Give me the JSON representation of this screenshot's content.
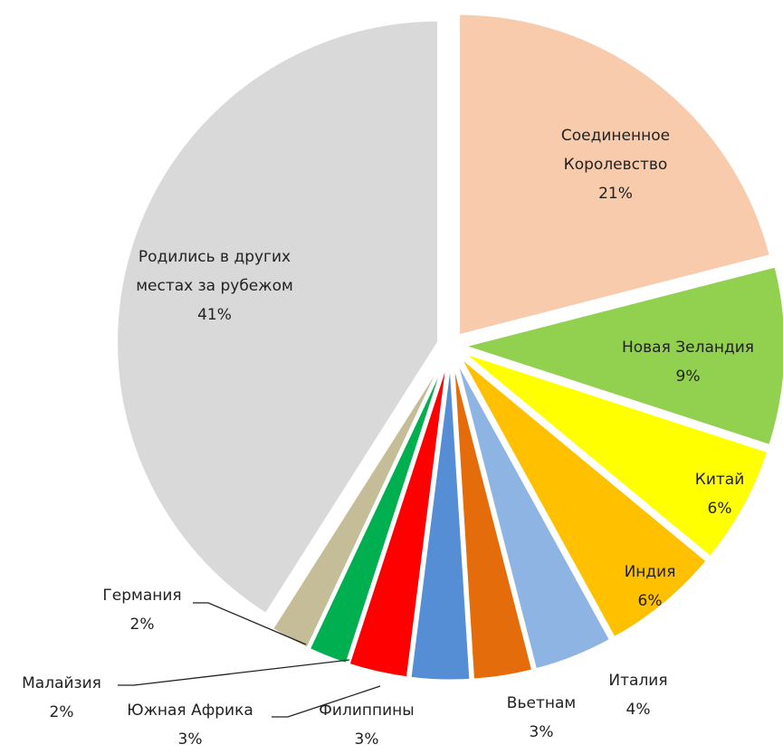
{
  "chart_data": {
    "type": "pie",
    "categories": [
      "Соединенное Королевство",
      "Новая Зеландия",
      "Китай",
      "Индия",
      "Италия",
      "Вьетнам",
      "Филиппины",
      "Южная Африка",
      "Малайзия",
      "Германия",
      "Родились в других местах за рубежом"
    ],
    "values": [
      21,
      9,
      6,
      6,
      4,
      3,
      3,
      3,
      2,
      2,
      41
    ],
    "value_labels": [
      "21%",
      "9%",
      "6%",
      "6%",
      "4%",
      "3%",
      "3%",
      "3%",
      "2%",
      "2%",
      "41%"
    ],
    "colors": [
      "#f8cbad",
      "#92d050",
      "#ffff00",
      "#ffc000",
      "#8eb4e3",
      "#e46c0a",
      "#558ed5",
      "#ff0000",
      "#00b050",
      "#c4bd97",
      "#d9d9d9"
    ]
  }
}
